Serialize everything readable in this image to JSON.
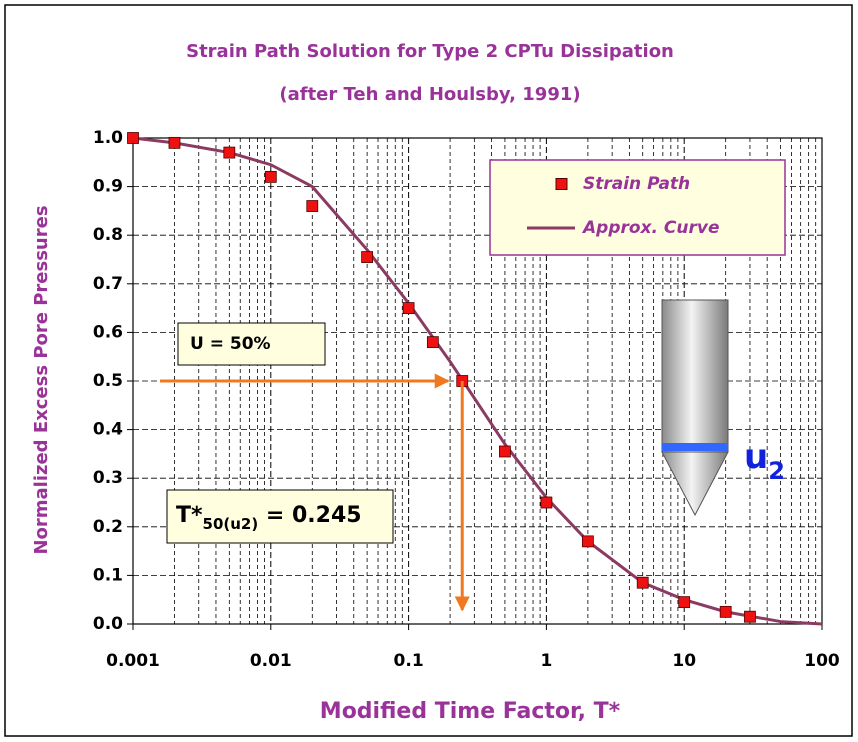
{
  "chart_data": {
    "type": "scatter",
    "title": "Strain Path Solution for Type 2 CPTu Dissipation",
    "subtitle": "(after Teh and Houlsby, 1991)",
    "x_label": "Modified Time Factor, T*",
    "y_label": "Normalized Excess Pore Pressures",
    "log_x": true,
    "grid": true,
    "legend": "upper right",
    "xlim": [
      0.001,
      100
    ],
    "ylim": [
      0,
      1
    ],
    "xticks": [
      0.001,
      0.01,
      0.1,
      1,
      10,
      100
    ],
    "xminorticks": [
      0.002,
      0.003,
      0.004,
      0.005,
      0.006,
      0.007,
      0.008,
      0.009,
      0.02,
      0.03,
      0.04,
      0.05,
      0.06,
      0.07,
      0.08,
      0.09,
      0.2,
      0.3,
      0.4,
      0.5,
      0.6,
      0.7,
      0.8,
      0.9,
      2,
      3,
      4,
      5,
      6,
      7,
      8,
      9,
      20,
      30,
      40,
      50,
      60,
      70,
      80,
      90
    ],
    "yticks": [
      {
        "value": 0,
        "label": "0.0"
      },
      0.1,
      0.2,
      0.3,
      0.4,
      0.5,
      0.6,
      0.7,
      0.8,
      0.9,
      {
        "value": 1,
        "label": "1.0"
      }
    ],
    "series": [
      {
        "name": "Strain Path",
        "type": "scatter",
        "color": "#ee1111",
        "x": [
          0.001,
          0.002,
          0.005,
          0.01,
          0.02,
          0.05,
          0.1,
          0.15,
          0.245,
          0.5,
          1,
          2,
          5,
          10,
          20,
          30
        ],
        "values": [
          1.0,
          0.99,
          0.97,
          0.92,
          0.86,
          0.755,
          0.65,
          0.58,
          0.5,
          0.355,
          0.25,
          0.17,
          0.085,
          0.045,
          0.025,
          0.015
        ]
      },
      {
        "name": "Approx. Curve",
        "type": "line",
        "color": "#8b3a62",
        "x": [
          0.001,
          0.002,
          0.005,
          0.01,
          0.02,
          0.05,
          0.1,
          0.2,
          0.5,
          1,
          2,
          5,
          10,
          20,
          50,
          100
        ],
        "values": [
          1.0,
          0.99,
          0.97,
          0.945,
          0.9,
          0.77,
          0.66,
          0.54,
          0.37,
          0.26,
          0.17,
          0.085,
          0.05,
          0.025,
          0.005,
          0.0
        ]
      }
    ],
    "annotations": [
      {
        "text": "U = 50%",
        "y": 0.5
      },
      {
        "prefix": "T*",
        "sub": "50(u2)",
        "equals": " = ",
        "x": 0.245
      }
    ],
    "probe_label": {
      "main": "u",
      "sub": "2"
    }
  }
}
